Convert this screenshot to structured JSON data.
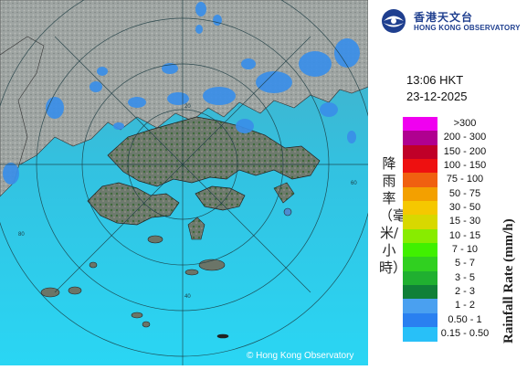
{
  "logo": {
    "name_zh": "香港天文台",
    "name_en": "HONG KONG OBSERVATORY"
  },
  "timestamp": {
    "time": "13:06 HKT",
    "date": "23-12-2025"
  },
  "legend": {
    "title_en": "Rainfall Rate (mm/h)",
    "title_zh": "降雨率（毫米/小時）",
    "items": [
      {
        "label": ">300",
        "color": "#f000f0"
      },
      {
        "label": "200 - 300",
        "color": "#b00090"
      },
      {
        "label": "150 - 200",
        "color": "#c00028"
      },
      {
        "label": "100 - 150",
        "color": "#ee1010"
      },
      {
        "label": "75 - 100",
        "color": "#f06010"
      },
      {
        "label": "50 - 75",
        "color": "#f3a000"
      },
      {
        "label": "30 - 50",
        "color": "#f5c800"
      },
      {
        "label": "15 - 30",
        "color": "#d8d800"
      },
      {
        "label": "10 - 15",
        "color": "#88ec00"
      },
      {
        "label": "7 - 10",
        "color": "#40f000"
      },
      {
        "label": "5 - 7",
        "color": "#30d020"
      },
      {
        "label": "3 - 5",
        "color": "#20b030"
      },
      {
        "label": "2 - 3",
        "color": "#108038"
      },
      {
        "label": "1 - 2",
        "color": "#4aa0f0"
      },
      {
        "label": "0.50 - 1",
        "color": "#2a80f0"
      },
      {
        "label": "0.15 - 0.50",
        "color": "#28c0f8"
      }
    ]
  },
  "map": {
    "range_ring_labels": [
      "20",
      "40",
      "60",
      "80"
    ],
    "copyright": "© Hong Kong Observatory"
  }
}
